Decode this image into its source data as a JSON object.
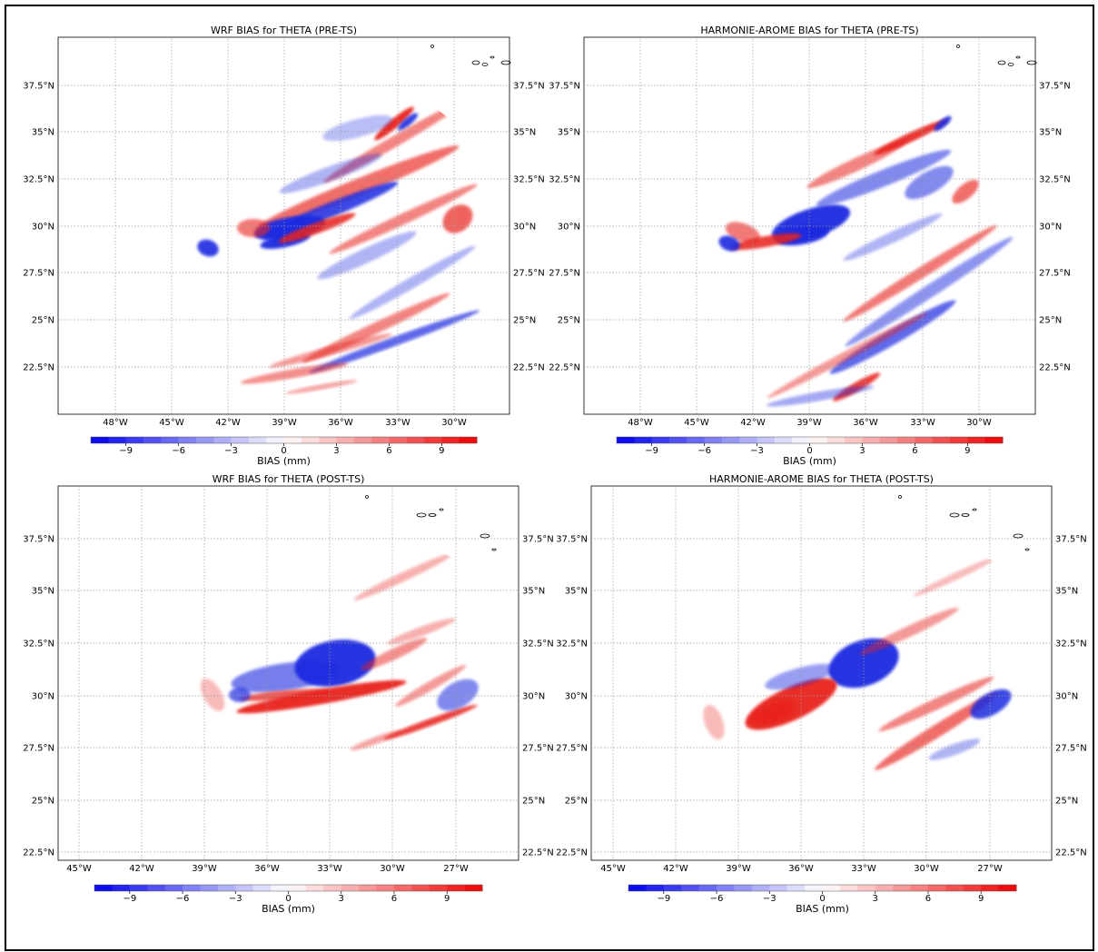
{
  "panels": [
    {
      "id": "wrf-pre",
      "title": "WRF BIAS for THETA (PRE-TS)",
      "lat_labels": [
        "37.5°N",
        "35°N",
        "32.5°N",
        "30°N",
        "27.5°N",
        "25°N",
        "22.5°N"
      ],
      "lon_labels": [
        "48°W",
        "45°W",
        "42°W",
        "39°W",
        "36°W",
        "33°W",
        "30°W"
      ]
    },
    {
      "id": "harm-pre",
      "title": "HARMONIE-AROME BIAS for THETA (PRE-TS)",
      "lat_labels": [
        "37.5°N",
        "35°N",
        "32.5°N",
        "30°N",
        "27.5°N",
        "25°N",
        "22.5°N"
      ],
      "lon_labels": [
        "48°W",
        "45°W",
        "42°W",
        "39°W",
        "36°W",
        "33°W",
        "30°W"
      ]
    },
    {
      "id": "wrf-post",
      "title": "WRF BIAS for THETA (POST-TS)",
      "lat_labels": [
        "37.5°N",
        "35°N",
        "32.5°N",
        "30°N",
        "27.5°N",
        "25°N",
        "22.5°N"
      ],
      "lon_labels": [
        "45°W",
        "42°W",
        "39°W",
        "36°W",
        "33°W",
        "30°W",
        "27°W"
      ]
    },
    {
      "id": "harm-post",
      "title": "HARMONIE-AROME BIAS for THETA (POST-TS)",
      "lat_labels": [
        "37.5°N",
        "35°N",
        "32.5°N",
        "30°N",
        "27.5°N",
        "25°N",
        "22.5°N"
      ],
      "lon_labels": [
        "45°W",
        "42°W",
        "39°W",
        "36°W",
        "33°W",
        "30°W",
        "27°W"
      ]
    }
  ],
  "colorbar": {
    "label": "BIAS (mm)",
    "ticks": [
      "−9",
      "−6",
      "−3",
      "0",
      "3",
      "6",
      "9"
    ],
    "min_color": "#0000ee",
    "mid_color": "#ffffff",
    "max_color": "#ee0000"
  },
  "colors": {
    "positive": "#e8201f",
    "negative": "#1f2be0",
    "grid": "#9a9a9a"
  }
}
